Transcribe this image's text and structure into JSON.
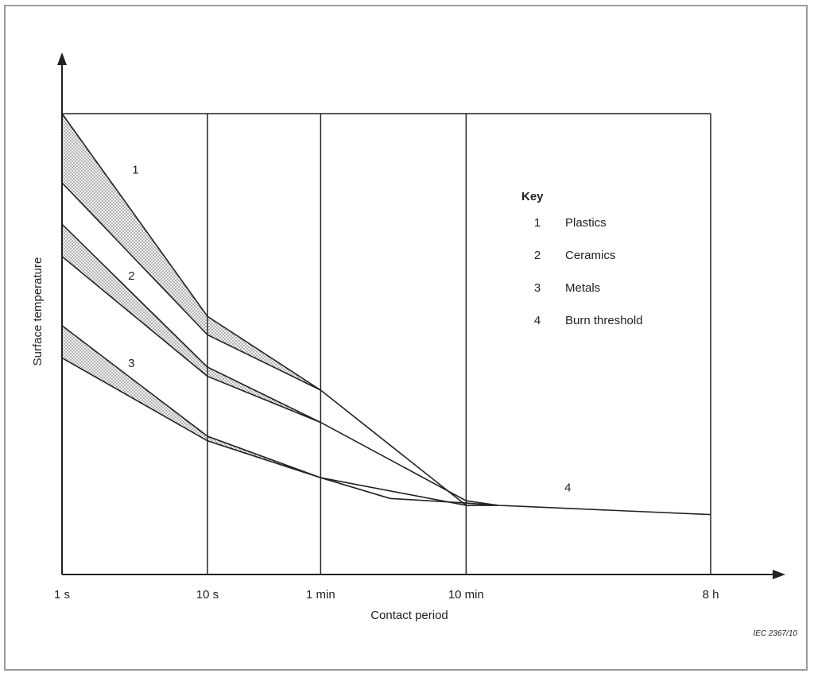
{
  "chart_data": {
    "type": "line",
    "xlabel": "Contact period",
    "ylabel": "Surface temperature",
    "x_scale": "log",
    "x_ticks": [
      {
        "label": "1 s",
        "seconds": 1
      },
      {
        "label": "10 s",
        "seconds": 10
      },
      {
        "label": "1 min",
        "seconds": 60
      },
      {
        "label": "10 min",
        "seconds": 600
      },
      {
        "label": "8 h",
        "seconds": 28800
      }
    ],
    "y_ticks": [],
    "grid": "vertical lines at x ticks",
    "key": {
      "title": "Key",
      "placement": "top-right",
      "entries": [
        {
          "number": "1",
          "label": "Plastics"
        },
        {
          "number": "2",
          "label": "Ceramics"
        },
        {
          "number": "3",
          "label": "Metals"
        },
        {
          "number": "4",
          "label": "Burn threshold"
        }
      ]
    },
    "series": [
      {
        "name": "1",
        "kind": "band",
        "fill": "dotted",
        "upper": [
          [
            1,
            1.0
          ],
          [
            10,
            0.56
          ],
          [
            60,
            0.4
          ],
          [
            600,
            0.15
          ],
          [
            1000,
            0.15
          ]
        ],
        "lower": [
          [
            1,
            0.85
          ],
          [
            10,
            0.52
          ],
          [
            60,
            0.4
          ]
        ]
      },
      {
        "name": "2",
        "kind": "band",
        "fill": "dotted",
        "upper": [
          [
            1,
            0.76
          ],
          [
            10,
            0.45
          ],
          [
            60,
            0.33
          ],
          [
            600,
            0.16
          ],
          [
            1000,
            0.15
          ]
        ],
        "lower": [
          [
            1,
            0.69
          ],
          [
            10,
            0.43
          ],
          [
            60,
            0.33
          ]
        ]
      },
      {
        "name": "3",
        "kind": "band",
        "fill": "dotted",
        "upper": [
          [
            1,
            0.54
          ],
          [
            10,
            0.3
          ],
          [
            60,
            0.21
          ],
          [
            600,
            0.15
          ],
          [
            1000,
            0.15
          ]
        ],
        "lower": [
          [
            1,
            0.47
          ],
          [
            10,
            0.29
          ],
          [
            60,
            0.21
          ]
        ]
      },
      {
        "name": "4",
        "kind": "line",
        "points": [
          [
            60,
            0.21
          ],
          [
            180,
            0.165
          ],
          [
            600,
            0.155
          ],
          [
            1000,
            0.15
          ],
          [
            28800,
            0.13
          ]
        ]
      }
    ],
    "curve_labels": [
      {
        "text": "1",
        "x": 3.2,
        "y": 0.87
      },
      {
        "text": "2",
        "x": 3.0,
        "y": 0.64
      },
      {
        "text": "3",
        "x": 3.0,
        "y": 0.45
      },
      {
        "text": "4",
        "x": 3000,
        "y": 0.18
      }
    ]
  },
  "reference": "IEC 2367/10"
}
